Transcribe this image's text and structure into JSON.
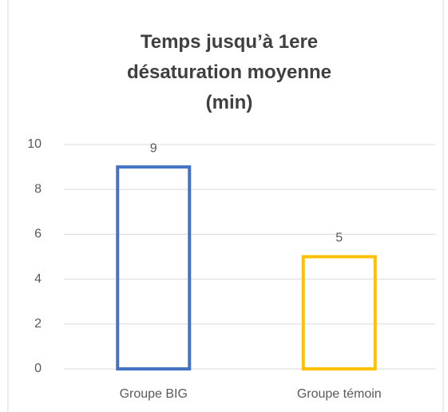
{
  "chart_data": {
    "type": "bar",
    "title": "Temps jusqu’à 1ere désaturation moyenne (min)",
    "categories": [
      "Groupe BIG",
      "Groupe témoin"
    ],
    "values": [
      9,
      5
    ],
    "colors": [
      "#4472c4",
      "#ffc000"
    ],
    "ylim": [
      0,
      10
    ],
    "yticks": [
      0,
      2,
      4,
      6,
      8,
      10
    ],
    "grid": true
  }
}
